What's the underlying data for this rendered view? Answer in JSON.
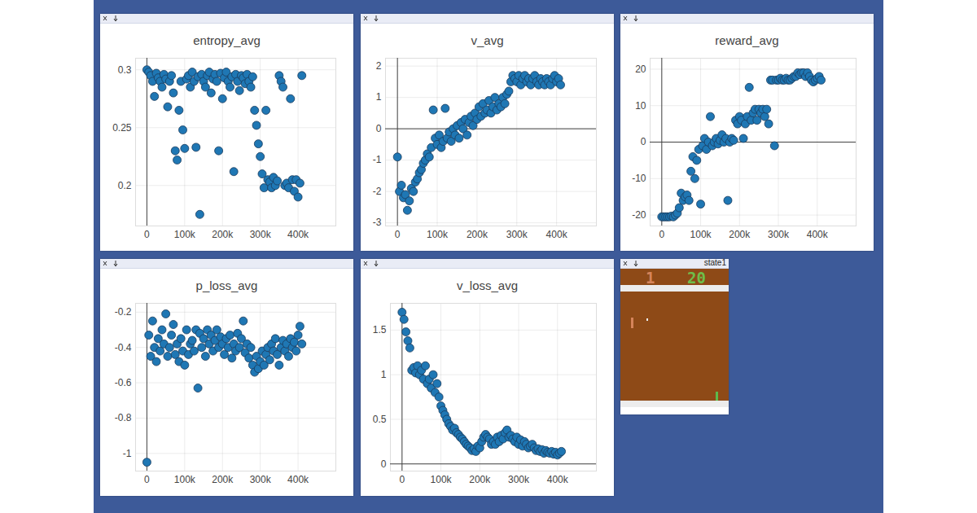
{
  "chart_data": [
    {
      "type": "scatter",
      "title": "entropy_avg",
      "color": "#1f77b4",
      "marker": "circle",
      "grid": true,
      "xlim": [
        -30000,
        500000
      ],
      "xticks": [
        0,
        {
          "value": 100000,
          "label": "100k"
        },
        {
          "value": 200000,
          "label": "200k"
        },
        {
          "value": 300000,
          "label": "300k"
        },
        {
          "value": 400000,
          "label": "400k"
        }
      ],
      "ylim": [
        0.165,
        0.31
      ],
      "yticks": [
        0.2,
        0.25,
        0.3
      ],
      "x": [
        0,
        5000,
        10000,
        15000,
        20000,
        25000,
        30000,
        35000,
        40000,
        45000,
        50000,
        55000,
        60000,
        65000,
        70000,
        75000,
        80000,
        85000,
        90000,
        95000,
        100000,
        105000,
        110000,
        115000,
        120000,
        125000,
        130000,
        135000,
        140000,
        145000,
        150000,
        155000,
        160000,
        165000,
        170000,
        175000,
        180000,
        185000,
        190000,
        195000,
        200000,
        205000,
        210000,
        215000,
        220000,
        225000,
        230000,
        235000,
        240000,
        245000,
        250000,
        255000,
        260000,
        265000,
        270000,
        275000,
        280000,
        285000,
        290000,
        295000,
        300000,
        305000,
        310000,
        315000,
        320000,
        325000,
        330000,
        335000,
        340000,
        345000,
        350000,
        355000,
        360000,
        365000,
        370000,
        375000,
        380000,
        385000,
        390000,
        395000,
        400000,
        405000,
        410000
      ],
      "values": [
        0.3,
        0.298,
        0.295,
        0.29,
        0.277,
        0.297,
        0.293,
        0.29,
        0.285,
        0.296,
        0.292,
        0.268,
        0.29,
        0.295,
        0.28,
        0.23,
        0.222,
        0.265,
        0.29,
        0.248,
        0.232,
        0.292,
        0.295,
        0.285,
        0.298,
        0.29,
        0.233,
        0.294,
        0.175,
        0.296,
        0.29,
        0.285,
        0.295,
        0.298,
        0.28,
        0.292,
        0.296,
        0.29,
        0.23,
        0.297,
        0.275,
        0.293,
        0.298,
        0.29,
        0.285,
        0.294,
        0.212,
        0.296,
        0.29,
        0.282,
        0.295,
        0.293,
        0.288,
        0.296,
        0.29,
        0.285,
        0.294,
        0.265,
        0.252,
        0.236,
        0.225,
        0.21,
        0.198,
        0.265,
        0.205,
        0.203,
        0.198,
        0.207,
        0.2,
        0.204,
        0.295,
        0.29,
        0.285,
        0.2,
        0.202,
        0.198,
        0.275,
        0.205,
        0.195,
        0.205,
        0.19,
        0.202,
        0.295
      ]
    },
    {
      "type": "scatter",
      "title": "v_avg",
      "color": "#1f77b4",
      "marker": "circle",
      "grid": true,
      "xlim": [
        -30000,
        500000
      ],
      "xticks": [
        0,
        {
          "value": 100000,
          "label": "100k"
        },
        {
          "value": 200000,
          "label": "200k"
        },
        {
          "value": 300000,
          "label": "300k"
        },
        {
          "value": 400000,
          "label": "400k"
        }
      ],
      "ylim": [
        -3.1,
        2.25
      ],
      "yticks": [
        -3,
        -2,
        -1,
        0,
        1,
        2
      ],
      "x": [
        0,
        5000,
        10000,
        15000,
        20000,
        25000,
        30000,
        35000,
        40000,
        45000,
        50000,
        55000,
        60000,
        65000,
        70000,
        75000,
        80000,
        85000,
        90000,
        95000,
        100000,
        105000,
        110000,
        115000,
        120000,
        125000,
        130000,
        135000,
        140000,
        145000,
        150000,
        155000,
        160000,
        165000,
        170000,
        175000,
        180000,
        185000,
        190000,
        195000,
        200000,
        205000,
        210000,
        215000,
        220000,
        225000,
        230000,
        235000,
        240000,
        245000,
        250000,
        255000,
        260000,
        265000,
        270000,
        275000,
        280000,
        285000,
        290000,
        295000,
        300000,
        305000,
        310000,
        315000,
        320000,
        325000,
        330000,
        335000,
        340000,
        345000,
        350000,
        355000,
        360000,
        365000,
        370000,
        375000,
        380000,
        385000,
        390000,
        395000,
        400000,
        405000,
        410000
      ],
      "values": [
        -0.9,
        -2.0,
        -1.8,
        -2.2,
        -2.1,
        -2.6,
        -2.3,
        -1.9,
        -2.0,
        -1.7,
        -1.6,
        -1.4,
        -1.3,
        -1.1,
        -1.0,
        -0.8,
        -0.9,
        -0.6,
        0.6,
        -0.3,
        -0.5,
        -0.2,
        -0.6,
        -0.4,
        0.65,
        -0.3,
        -0.1,
        -0.4,
        0.0,
        -0.2,
        0.1,
        -0.3,
        0.2,
        0.0,
        0.3,
        -0.2,
        0.2,
        0.4,
        0.1,
        0.5,
        0.3,
        0.7,
        0.4,
        0.8,
        0.5,
        0.6,
        0.9,
        0.5,
        0.7,
        1.0,
        0.6,
        0.8,
        0.7,
        1.0,
        0.8,
        1.1,
        1.2,
        1.5,
        1.7,
        1.6,
        1.5,
        1.7,
        1.4,
        1.6,
        1.7,
        1.5,
        1.6,
        1.4,
        1.6,
        1.7,
        1.5,
        1.4,
        1.6,
        1.5,
        1.4,
        1.6,
        1.5,
        1.4,
        1.6,
        1.7,
        1.5,
        1.6,
        1.4
      ]
    },
    {
      "type": "scatter",
      "title": "reward_avg",
      "color": "#1f77b4",
      "marker": "circle",
      "grid": true,
      "xlim": [
        -30000,
        500000
      ],
      "xticks": [
        0,
        {
          "value": 100000,
          "label": "100k"
        },
        {
          "value": 200000,
          "label": "200k"
        },
        {
          "value": 300000,
          "label": "300k"
        },
        {
          "value": 400000,
          "label": "400k"
        }
      ],
      "ylim": [
        -23,
        23
      ],
      "yticks": [
        -20,
        -10,
        0,
        10,
        20
      ],
      "x": [
        0,
        5000,
        10000,
        15000,
        20000,
        25000,
        30000,
        35000,
        40000,
        45000,
        50000,
        55000,
        60000,
        65000,
        70000,
        75000,
        80000,
        85000,
        90000,
        95000,
        100000,
        105000,
        110000,
        115000,
        120000,
        125000,
        130000,
        135000,
        140000,
        145000,
        150000,
        155000,
        160000,
        165000,
        170000,
        175000,
        180000,
        185000,
        190000,
        195000,
        200000,
        205000,
        210000,
        215000,
        220000,
        225000,
        230000,
        235000,
        240000,
        245000,
        250000,
        255000,
        260000,
        265000,
        270000,
        275000,
        280000,
        285000,
        290000,
        295000,
        300000,
        305000,
        310000,
        315000,
        320000,
        325000,
        330000,
        335000,
        340000,
        345000,
        350000,
        355000,
        360000,
        365000,
        370000,
        375000,
        380000,
        385000,
        390000,
        395000,
        400000,
        405000,
        410000
      ],
      "values": [
        -20.5,
        -20.5,
        -20.5,
        -20.5,
        -20.5,
        -20.3,
        -20.5,
        -20,
        -19.5,
        -18,
        -14,
        -16,
        -15,
        -14.5,
        -16,
        -8,
        -4,
        -10,
        -5,
        -2,
        -17,
        -1,
        1,
        -2,
        0,
        7,
        -1,
        0,
        1,
        -0.5,
        0.5,
        2,
        0,
        1,
        -16,
        0,
        1,
        0.5,
        6,
        5,
        7,
        6,
        1,
        5,
        7,
        15,
        6,
        8,
        9,
        6,
        9,
        8,
        9,
        7,
        9,
        5,
        17,
        17,
        -1,
        17,
        17,
        17.5,
        17,
        17,
        17.5,
        17,
        17,
        17.5,
        18,
        18,
        19,
        18.5,
        19,
        19,
        18,
        19,
        18,
        17,
        16.5,
        17,
        17.5,
        18,
        17
      ]
    },
    {
      "type": "scatter",
      "title": "p_loss_avg",
      "color": "#1f77b4",
      "marker": "circle",
      "grid": true,
      "xlim": [
        -30000,
        500000
      ],
      "xticks": [
        0,
        {
          "value": 100000,
          "label": "100k"
        },
        {
          "value": 200000,
          "label": "200k"
        },
        {
          "value": 300000,
          "label": "300k"
        },
        {
          "value": 400000,
          "label": "400k"
        }
      ],
      "ylim": [
        -1.1,
        -0.15
      ],
      "yticks": [
        -1,
        -0.8,
        -0.6,
        -0.4,
        -0.2
      ],
      "x": [
        0,
        5000,
        10000,
        15000,
        20000,
        25000,
        30000,
        35000,
        40000,
        45000,
        50000,
        55000,
        60000,
        65000,
        70000,
        75000,
        80000,
        85000,
        90000,
        95000,
        100000,
        105000,
        110000,
        115000,
        120000,
        125000,
        130000,
        135000,
        140000,
        145000,
        150000,
        155000,
        160000,
        165000,
        170000,
        175000,
        180000,
        185000,
        190000,
        195000,
        200000,
        205000,
        210000,
        215000,
        220000,
        225000,
        230000,
        235000,
        240000,
        245000,
        250000,
        255000,
        260000,
        265000,
        270000,
        275000,
        280000,
        285000,
        290000,
        295000,
        300000,
        305000,
        310000,
        315000,
        320000,
        325000,
        330000,
        335000,
        340000,
        345000,
        350000,
        355000,
        360000,
        365000,
        370000,
        375000,
        380000,
        385000,
        390000,
        395000,
        400000,
        405000,
        410000
      ],
      "values": [
        -1.05,
        -0.33,
        -0.45,
        -0.25,
        -0.4,
        -0.48,
        -0.35,
        -0.42,
        -0.3,
        -0.38,
        -0.21,
        -0.45,
        -0.4,
        -0.33,
        -0.27,
        -0.44,
        -0.38,
        -0.48,
        -0.35,
        -0.42,
        -0.5,
        -0.3,
        -0.44,
        -0.38,
        -0.36,
        -0.42,
        -0.3,
        -0.63,
        -0.32,
        -0.4,
        -0.35,
        -0.45,
        -0.3,
        -0.38,
        -0.33,
        -0.42,
        -0.36,
        -0.3,
        -0.4,
        -0.34,
        -0.38,
        -0.44,
        -0.35,
        -0.4,
        -0.33,
        -0.46,
        -0.38,
        -0.42,
        -0.32,
        -0.4,
        -0.35,
        -0.25,
        -0.43,
        -0.38,
        -0.46,
        -0.4,
        -0.5,
        -0.54,
        -0.45,
        -0.52,
        -0.48,
        -0.42,
        -0.5,
        -0.44,
        -0.4,
        -0.47,
        -0.38,
        -0.42,
        -0.35,
        -0.44,
        -0.5,
        -0.4,
        -0.36,
        -0.42,
        -0.38,
        -0.45,
        -0.35,
        -0.4,
        -0.37,
        -0.42,
        -0.33,
        -0.28,
        -0.38
      ]
    },
    {
      "type": "scatter",
      "title": "v_loss_avg",
      "color": "#1f77b4",
      "marker": "circle",
      "grid": true,
      "xlim": [
        -30000,
        500000
      ],
      "xticks": [
        0,
        {
          "value": 100000,
          "label": "100k"
        },
        {
          "value": 200000,
          "label": "200k"
        },
        {
          "value": 300000,
          "label": "300k"
        },
        {
          "value": 400000,
          "label": "400k"
        }
      ],
      "ylim": [
        -0.08,
        1.8
      ],
      "yticks": [
        0,
        0.5,
        1,
        1.5
      ],
      "x": [
        0,
        5000,
        10000,
        15000,
        20000,
        25000,
        30000,
        35000,
        40000,
        45000,
        50000,
        55000,
        60000,
        65000,
        70000,
        75000,
        80000,
        85000,
        90000,
        95000,
        100000,
        105000,
        110000,
        115000,
        120000,
        125000,
        130000,
        135000,
        140000,
        145000,
        150000,
        155000,
        160000,
        165000,
        170000,
        175000,
        180000,
        185000,
        190000,
        195000,
        200000,
        205000,
        210000,
        215000,
        220000,
        225000,
        230000,
        235000,
        240000,
        245000,
        250000,
        255000,
        260000,
        265000,
        270000,
        275000,
        280000,
        285000,
        290000,
        295000,
        300000,
        305000,
        310000,
        315000,
        320000,
        325000,
        330000,
        335000,
        340000,
        345000,
        350000,
        355000,
        360000,
        365000,
        370000,
        375000,
        380000,
        385000,
        390000,
        395000,
        400000,
        405000,
        410000
      ],
      "values": [
        1.7,
        1.62,
        1.48,
        1.38,
        1.3,
        1.05,
        1.08,
        1.02,
        1.1,
        1.0,
        1.05,
        0.95,
        1.1,
        0.9,
        0.95,
        0.85,
        1.0,
        0.8,
        0.9,
        0.75,
        0.65,
        0.6,
        0.55,
        0.5,
        0.45,
        0.42,
        0.38,
        0.4,
        0.35,
        0.33,
        0.3,
        0.28,
        0.25,
        0.22,
        0.2,
        0.18,
        0.15,
        0.17,
        0.14,
        0.2,
        0.18,
        0.25,
        0.3,
        0.33,
        0.3,
        0.28,
        0.22,
        0.25,
        0.22,
        0.3,
        0.25,
        0.32,
        0.28,
        0.35,
        0.38,
        0.3,
        0.32,
        0.28,
        0.25,
        0.3,
        0.22,
        0.27,
        0.2,
        0.25,
        0.22,
        0.18,
        0.2,
        0.22,
        0.18,
        0.15,
        0.17,
        0.14,
        0.16,
        0.12,
        0.15,
        0.13,
        0.12,
        0.14,
        0.11,
        0.13,
        0.1,
        0.12,
        0.14
      ]
    }
  ],
  "state_panel": {
    "title": "state1",
    "scores": [
      1,
      20
    ]
  }
}
